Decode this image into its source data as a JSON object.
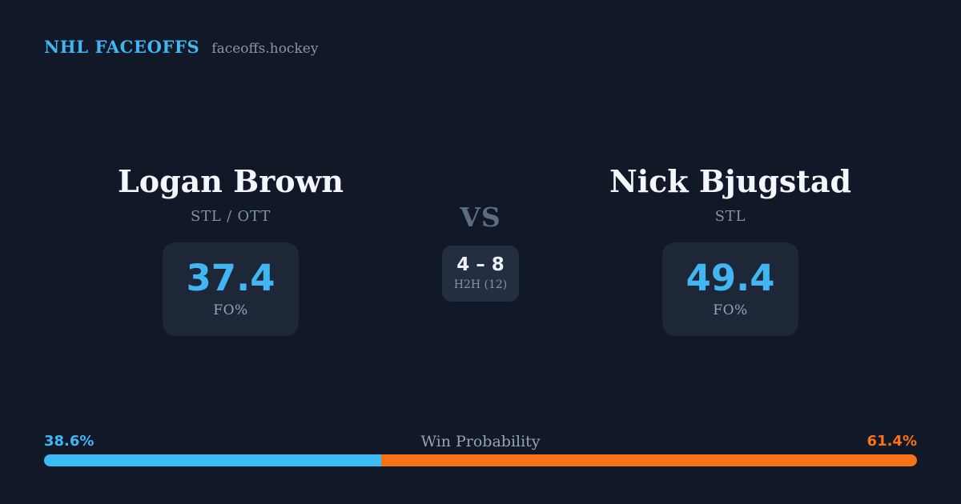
{
  "header": {
    "brand": "NHL FACEOFFS",
    "site": "faceoffs.hockey"
  },
  "players": {
    "left": {
      "name": "Logan Brown",
      "teams": "STL / OTT",
      "fo_value": "37.4",
      "fo_label": "FO%"
    },
    "right": {
      "name": "Nick Bjugstad",
      "teams": "STL",
      "fo_value": "49.4",
      "fo_label": "FO%"
    }
  },
  "matchup": {
    "vs_label": "VS",
    "h2h_score": "4 – 8",
    "h2h_label": "H2H (12)"
  },
  "win_probability": {
    "title": "Win Probability",
    "left_pct": 38.6,
    "right_pct": 61.4,
    "left_text": "38.6%",
    "right_text": "61.4%"
  },
  "colors": {
    "background": "#111827",
    "card": "#1d2737",
    "accent_blue": "#3cbcf5",
    "accent_orange": "#f97316",
    "text_primary": "#f3f6fb",
    "text_muted": "#8392a8"
  }
}
